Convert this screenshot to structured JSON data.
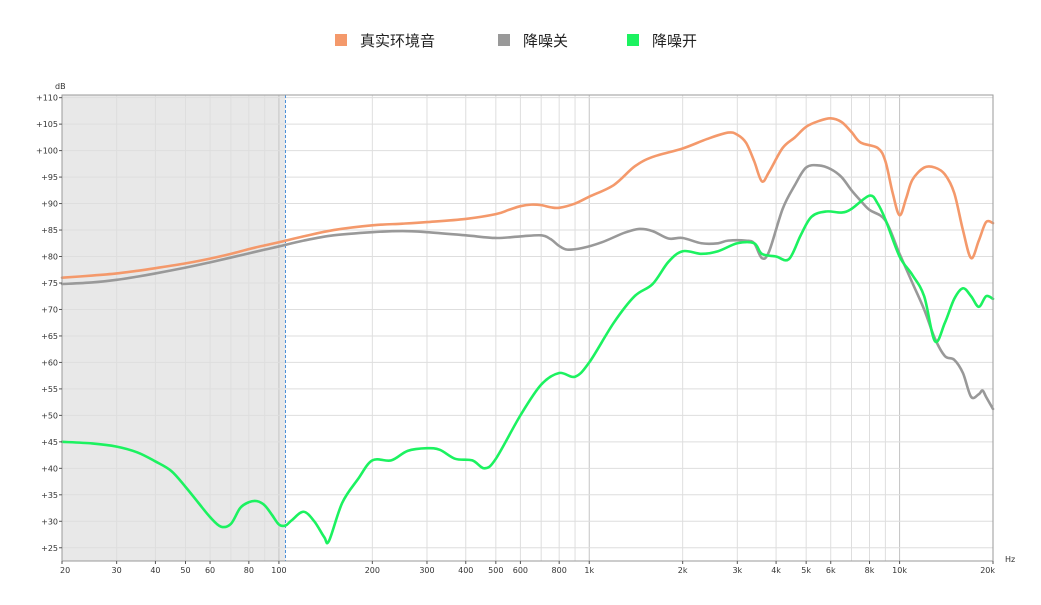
{
  "chart_data": {
    "type": "line",
    "x_scale": "log",
    "xlabel": "Hz",
    "ylabel": "dB",
    "xlim": [
      20,
      20000
    ],
    "ylim": [
      22.5,
      110.5
    ],
    "grid": true,
    "legend_position": "top-center",
    "shaded_range": {
      "from": 20,
      "to": 105,
      "color": "#e8e8e8",
      "marker_color": "#4a90d9"
    },
    "x_ticks": [
      {
        "value": 20,
        "label": "20"
      },
      {
        "value": 30,
        "label": "30"
      },
      {
        "value": 40,
        "label": "40"
      },
      {
        "value": 50,
        "label": "50"
      },
      {
        "value": 60,
        "label": "60"
      },
      {
        "value": 80,
        "label": "80"
      },
      {
        "value": 100,
        "label": "100"
      },
      {
        "value": 200,
        "label": "200"
      },
      {
        "value": 300,
        "label": "300"
      },
      {
        "value": 400,
        "label": "400"
      },
      {
        "value": 500,
        "label": "500"
      },
      {
        "value": 600,
        "label": "600"
      },
      {
        "value": 800,
        "label": "800"
      },
      {
        "value": 1000,
        "label": "1k"
      },
      {
        "value": 2000,
        "label": "2k"
      },
      {
        "value": 3000,
        "label": "3k"
      },
      {
        "value": 4000,
        "label": "4k"
      },
      {
        "value": 5000,
        "label": "5k"
      },
      {
        "value": 6000,
        "label": "6k"
      },
      {
        "value": 8000,
        "label": "8k"
      },
      {
        "value": 10000,
        "label": "10k"
      },
      {
        "value": 20000,
        "label": "20k"
      }
    ],
    "y_ticks": [
      {
        "value": 25,
        "label": "+25"
      },
      {
        "value": 30,
        "label": "+30"
      },
      {
        "value": 35,
        "label": "+35"
      },
      {
        "value": 40,
        "label": "+40"
      },
      {
        "value": 45,
        "label": "+45"
      },
      {
        "value": 50,
        "label": "+50"
      },
      {
        "value": 55,
        "label": "+55"
      },
      {
        "value": 60,
        "label": "+60"
      },
      {
        "value": 65,
        "label": "+65"
      },
      {
        "value": 70,
        "label": "+70"
      },
      {
        "value": 75,
        "label": "+75"
      },
      {
        "value": 80,
        "label": "+80"
      },
      {
        "value": 85,
        "label": "+85"
      },
      {
        "value": 90,
        "label": "+90"
      },
      {
        "value": 95,
        "label": "+95"
      },
      {
        "value": 100,
        "label": "+100"
      },
      {
        "value": 105,
        "label": "+105"
      },
      {
        "value": 110,
        "label": "+110"
      }
    ],
    "series": [
      {
        "name": "真实环境音",
        "color": "#f4996b",
        "points": [
          [
            20,
            76
          ],
          [
            25,
            76.4
          ],
          [
            30,
            76.8
          ],
          [
            35,
            77.3
          ],
          [
            40,
            77.8
          ],
          [
            50,
            78.7
          ],
          [
            60,
            79.6
          ],
          [
            70,
            80.5
          ],
          [
            80,
            81.4
          ],
          [
            90,
            82.1
          ],
          [
            100,
            82.7
          ],
          [
            120,
            83.8
          ],
          [
            150,
            85.0
          ],
          [
            200,
            85.9
          ],
          [
            250,
            86.2
          ],
          [
            300,
            86.5
          ],
          [
            400,
            87.1
          ],
          [
            500,
            88.0
          ],
          [
            550,
            88.8
          ],
          [
            600,
            89.5
          ],
          [
            650,
            89.8
          ],
          [
            700,
            89.7
          ],
          [
            750,
            89.3
          ],
          [
            800,
            89.2
          ],
          [
            900,
            90.0
          ],
          [
            1000,
            91.3
          ],
          [
            1200,
            93.5
          ],
          [
            1400,
            97.0
          ],
          [
            1600,
            98.8
          ],
          [
            2000,
            100.4
          ],
          [
            2400,
            102.2
          ],
          [
            2800,
            103.4
          ],
          [
            3000,
            103.0
          ],
          [
            3200,
            101.5
          ],
          [
            3400,
            98.0
          ],
          [
            3600,
            94.2
          ],
          [
            3800,
            96.0
          ],
          [
            4200,
            100.5
          ],
          [
            4600,
            102.5
          ],
          [
            5000,
            104.5
          ],
          [
            5500,
            105.6
          ],
          [
            6000,
            106.1
          ],
          [
            6500,
            105.4
          ],
          [
            7000,
            103.5
          ],
          [
            7500,
            101.5
          ],
          [
            8500,
            100.5
          ],
          [
            9000,
            98.0
          ],
          [
            9500,
            92.0
          ],
          [
            10000,
            87.8
          ],
          [
            10500,
            91.0
          ],
          [
            11000,
            94.5
          ],
          [
            12000,
            96.8
          ],
          [
            13000,
            96.8
          ],
          [
            14000,
            95.5
          ],
          [
            15000,
            92.0
          ],
          [
            16000,
            85.0
          ],
          [
            17000,
            79.7
          ],
          [
            18000,
            83.0
          ],
          [
            19000,
            86.5
          ],
          [
            20000,
            86.3
          ]
        ]
      },
      {
        "name": "降噪关",
        "color": "#999999",
        "points": [
          [
            20,
            74.8
          ],
          [
            25,
            75.1
          ],
          [
            30,
            75.6
          ],
          [
            35,
            76.2
          ],
          [
            40,
            76.8
          ],
          [
            50,
            77.9
          ],
          [
            60,
            78.9
          ],
          [
            70,
            79.8
          ],
          [
            80,
            80.6
          ],
          [
            90,
            81.3
          ],
          [
            100,
            81.9
          ],
          [
            120,
            83.0
          ],
          [
            150,
            84.0
          ],
          [
            200,
            84.6
          ],
          [
            250,
            84.8
          ],
          [
            300,
            84.6
          ],
          [
            400,
            84.0
          ],
          [
            500,
            83.5
          ],
          [
            600,
            83.8
          ],
          [
            700,
            84.0
          ],
          [
            750,
            83.3
          ],
          [
            800,
            82.0
          ],
          [
            850,
            81.3
          ],
          [
            950,
            81.6
          ],
          [
            1100,
            82.7
          ],
          [
            1300,
            84.5
          ],
          [
            1450,
            85.2
          ],
          [
            1600,
            84.8
          ],
          [
            1800,
            83.4
          ],
          [
            2000,
            83.5
          ],
          [
            2300,
            82.5
          ],
          [
            2600,
            82.5
          ],
          [
            2800,
            83.0
          ],
          [
            3200,
            83.0
          ],
          [
            3400,
            82.5
          ],
          [
            3600,
            79.7
          ],
          [
            3800,
            81.0
          ],
          [
            4200,
            89.0
          ],
          [
            4600,
            93.5
          ],
          [
            5000,
            96.8
          ],
          [
            5500,
            97.2
          ],
          [
            6000,
            96.5
          ],
          [
            6500,
            95.0
          ],
          [
            7000,
            92.5
          ],
          [
            7500,
            90.5
          ],
          [
            8000,
            88.8
          ],
          [
            9000,
            86.8
          ],
          [
            10000,
            80.5
          ],
          [
            11000,
            75.0
          ],
          [
            12000,
            70.0
          ],
          [
            13000,
            64.5
          ],
          [
            14000,
            61.2
          ],
          [
            15000,
            60.5
          ],
          [
            16000,
            58.0
          ],
          [
            17000,
            53.5
          ],
          [
            18000,
            54.0
          ],
          [
            18500,
            54.7
          ],
          [
            19000,
            53.5
          ],
          [
            20000,
            51.2
          ]
        ]
      },
      {
        "name": "降噪开",
        "color": "#1cf260",
        "points": [
          [
            20,
            45.0
          ],
          [
            25,
            44.7
          ],
          [
            30,
            44.1
          ],
          [
            35,
            43.0
          ],
          [
            40,
            41.3
          ],
          [
            45,
            39.5
          ],
          [
            50,
            36.5
          ],
          [
            55,
            33.5
          ],
          [
            60,
            30.8
          ],
          [
            65,
            29.0
          ],
          [
            70,
            29.5
          ],
          [
            75,
            32.5
          ],
          [
            80,
            33.6
          ],
          [
            85,
            33.8
          ],
          [
            90,
            33.0
          ],
          [
            95,
            31.2
          ],
          [
            100,
            29.4
          ],
          [
            105,
            29.2
          ],
          [
            110,
            30.2
          ],
          [
            120,
            31.8
          ],
          [
            130,
            30.0
          ],
          [
            140,
            27.0
          ],
          [
            145,
            26.3
          ],
          [
            160,
            33.5
          ],
          [
            180,
            38.0
          ],
          [
            200,
            41.5
          ],
          [
            230,
            41.5
          ],
          [
            260,
            43.3
          ],
          [
            300,
            43.8
          ],
          [
            330,
            43.5
          ],
          [
            370,
            41.8
          ],
          [
            420,
            41.5
          ],
          [
            460,
            40.0
          ],
          [
            500,
            41.8
          ],
          [
            600,
            50.0
          ],
          [
            700,
            55.8
          ],
          [
            800,
            58.0
          ],
          [
            900,
            57.3
          ],
          [
            1000,
            60.0
          ],
          [
            1200,
            67.5
          ],
          [
            1400,
            72.5
          ],
          [
            1600,
            74.8
          ],
          [
            1800,
            79.0
          ],
          [
            2000,
            81.0
          ],
          [
            2300,
            80.5
          ],
          [
            2600,
            81.0
          ],
          [
            3000,
            82.5
          ],
          [
            3400,
            82.5
          ],
          [
            3600,
            80.5
          ],
          [
            4000,
            80.0
          ],
          [
            4400,
            79.5
          ],
          [
            4800,
            84.0
          ],
          [
            5200,
            87.5
          ],
          [
            5800,
            88.5
          ],
          [
            6500,
            88.3
          ],
          [
            7000,
            89.0
          ],
          [
            8000,
            91.5
          ],
          [
            8500,
            90.0
          ],
          [
            9000,
            87.0
          ],
          [
            10000,
            80.0
          ],
          [
            11000,
            76.5
          ],
          [
            12000,
            72.5
          ],
          [
            13000,
            64.0
          ],
          [
            14000,
            67.5
          ],
          [
            15000,
            72.0
          ],
          [
            16000,
            74.0
          ],
          [
            17000,
            72.5
          ],
          [
            18000,
            70.5
          ],
          [
            19000,
            72.5
          ],
          [
            20000,
            72.0
          ]
        ]
      }
    ]
  }
}
